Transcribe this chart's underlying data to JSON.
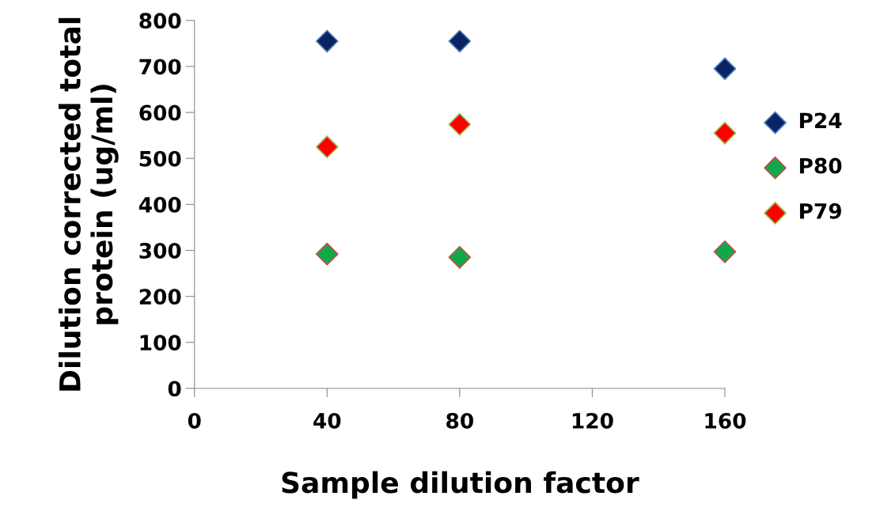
{
  "chart_data": {
    "type": "scatter",
    "xlabel": "Sample dilution factor",
    "ylabel": "Dilution corrected total\nprotein (ug/ml)",
    "x": [
      40,
      80,
      160
    ],
    "series": [
      {
        "name": "P24",
        "color": "#0a2463",
        "values": [
          755,
          755,
          695
        ]
      },
      {
        "name": "P80",
        "color": "#12a84a",
        "values": [
          292,
          285,
          297
        ]
      },
      {
        "name": "P79",
        "color": "#ff0000",
        "values": [
          525,
          574,
          555
        ]
      }
    ],
    "xlim": [
      0,
      160
    ],
    "xticks": [
      0,
      40,
      80,
      120,
      160
    ],
    "ylim": [
      0,
      800
    ],
    "yticks": [
      0,
      100,
      200,
      300,
      400,
      500,
      600,
      700,
      800
    ],
    "marker": "diamond",
    "grid": false,
    "legend": "right"
  }
}
